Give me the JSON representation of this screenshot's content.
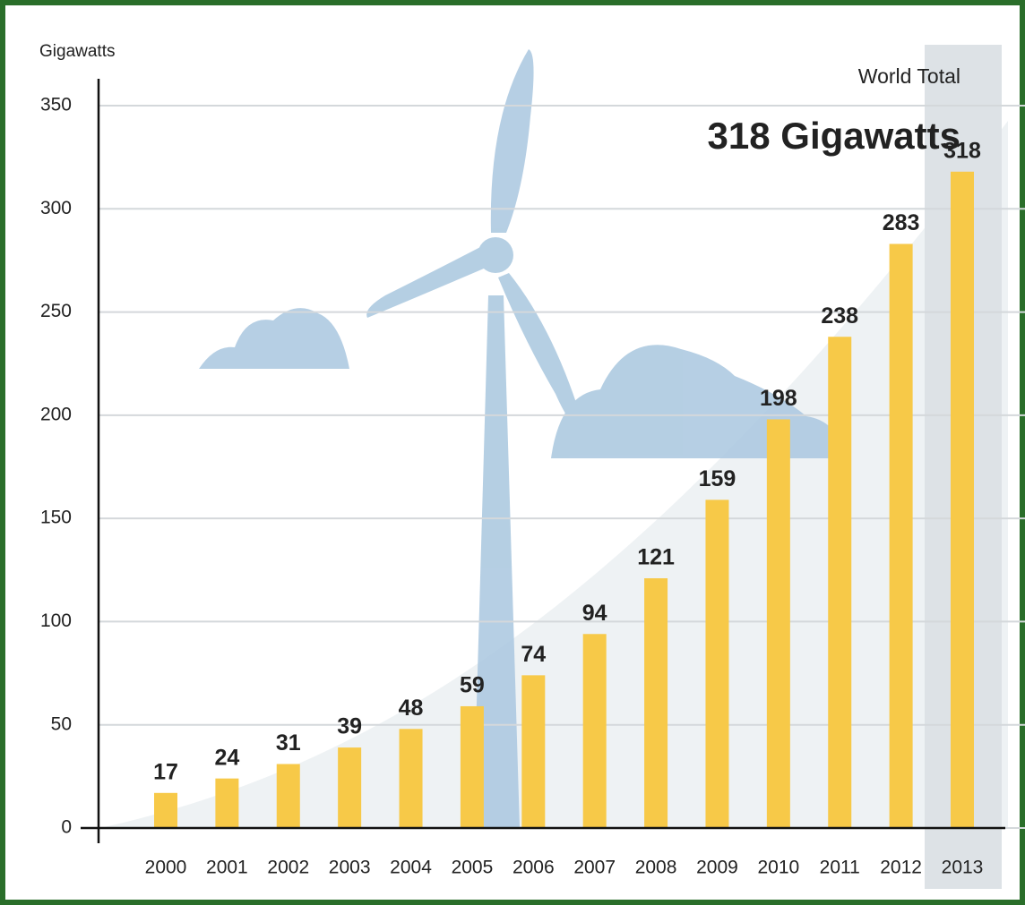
{
  "chart_data": {
    "type": "bar",
    "y_axis_label": "Gigawatts",
    "annotations": [
      "World Total",
      "318 Gigawatts"
    ],
    "categories": [
      "2000",
      "2001",
      "2002",
      "2003",
      "2004",
      "2005",
      "2006",
      "2007",
      "2008",
      "2009",
      "2010",
      "2011",
      "2012",
      "2013"
    ],
    "values": [
      17,
      24,
      31,
      39,
      48,
      59,
      74,
      94,
      121,
      159,
      198,
      238,
      283,
      318
    ],
    "color": "#f7c948",
    "ylim": [
      0,
      350
    ],
    "yticks": [
      0,
      50,
      100,
      150,
      200,
      250,
      300,
      350
    ],
    "grid": true
  }
}
